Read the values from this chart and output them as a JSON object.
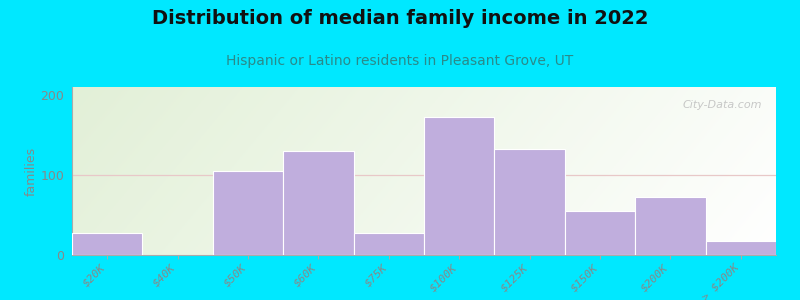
{
  "title": "Distribution of median family income in 2022",
  "subtitle": "Hispanic or Latino residents in Pleasant Grove, UT",
  "ylabel": "families",
  "categories": [
    "$20K",
    "$40K",
    "$50K",
    "$60K",
    "$75K",
    "$100K",
    "$125K",
    "$150K",
    "$200K",
    "> $200K"
  ],
  "values": [
    27,
    0,
    105,
    130,
    27,
    172,
    132,
    55,
    72,
    18
  ],
  "bar_color": "#c0aedd",
  "ylim": [
    0,
    210
  ],
  "yticks": [
    0,
    100,
    200
  ],
  "bg_outer": "#00e8ff",
  "bg_plot_topleft": "#d4eac8",
  "bg_plot_right": "#f8f8f8",
  "title_fontsize": 14,
  "subtitle_fontsize": 10,
  "title_color": "#111111",
  "subtitle_color": "#2a8a8a",
  "watermark": "City-Data.com",
  "grid_color": "#e8c8c8",
  "tick_label_color": "#888888",
  "axis_color": "#aaaaaa"
}
